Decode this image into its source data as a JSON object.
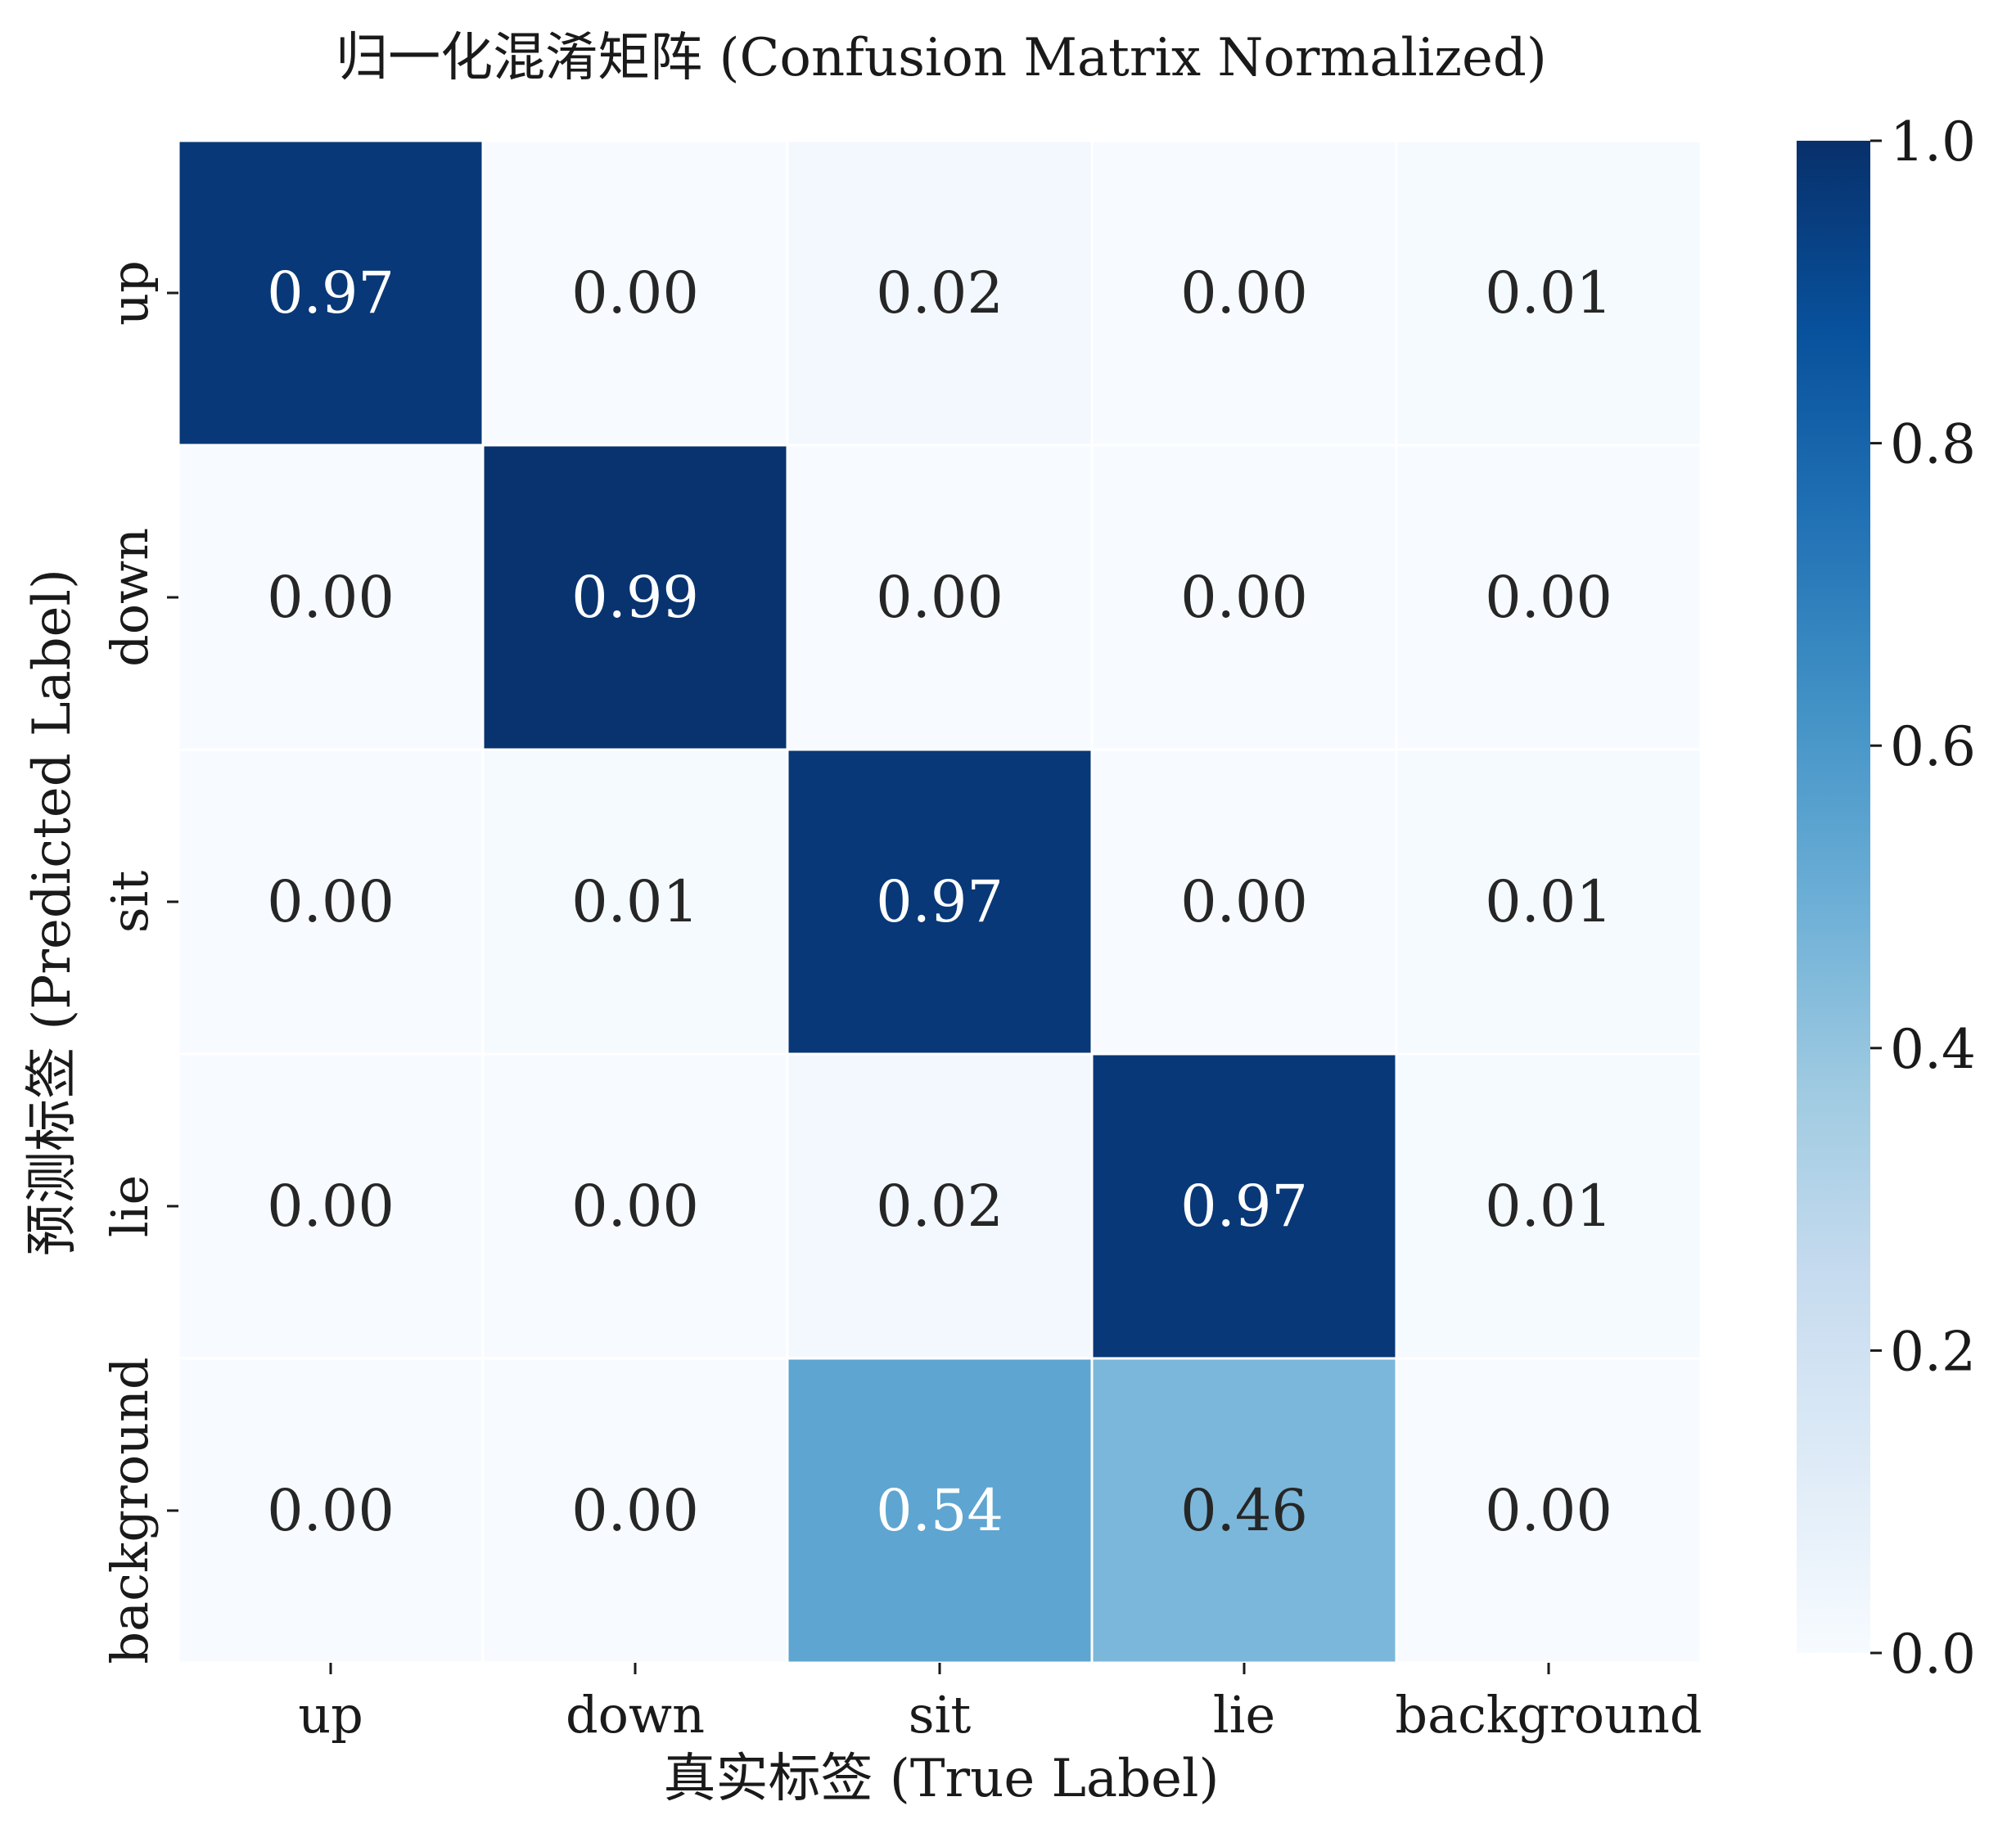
{
  "chart_data": {
    "type": "heatmap",
    "title": "归一化混淆矩阵 (Confusion Matrix Normalized)",
    "xlabel": "真实标签 (True Label)",
    "ylabel": "预测标签 (Predicted Label)",
    "x_categories": [
      "up",
      "down",
      "sit",
      "lie",
      "background"
    ],
    "y_categories": [
      "up",
      "down",
      "sit",
      "lie",
      "background"
    ],
    "values": [
      [
        0.97,
        0.0,
        0.02,
        0.0,
        0.01
      ],
      [
        0.0,
        0.99,
        0.0,
        0.0,
        0.0
      ],
      [
        0.0,
        0.01,
        0.97,
        0.0,
        0.01
      ],
      [
        0.0,
        0.0,
        0.02,
        0.97,
        0.01
      ],
      [
        0.0,
        0.0,
        0.54,
        0.46,
        0.0
      ]
    ],
    "value_labels": [
      [
        "0.97",
        "0.00",
        "0.02",
        "0.00",
        "0.01"
      ],
      [
        "0.00",
        "0.99",
        "0.00",
        "0.00",
        "0.00"
      ],
      [
        "0.00",
        "0.01",
        "0.97",
        "0.00",
        "0.01"
      ],
      [
        "0.00",
        "0.00",
        "0.02",
        "0.97",
        "0.01"
      ],
      [
        "0.00",
        "0.00",
        "0.54",
        "0.46",
        "0.00"
      ]
    ],
    "colorbar": {
      "colormap": "Blues",
      "range": [
        0.0,
        1.0
      ],
      "ticks": [
        0.0,
        0.2,
        0.4,
        0.6,
        0.8,
        1.0
      ],
      "tick_labels": [
        "0.0",
        "0.2",
        "0.4",
        "0.6",
        "0.8",
        "1.0"
      ]
    },
    "grid": false,
    "cell_border_color": "#ffffff"
  }
}
